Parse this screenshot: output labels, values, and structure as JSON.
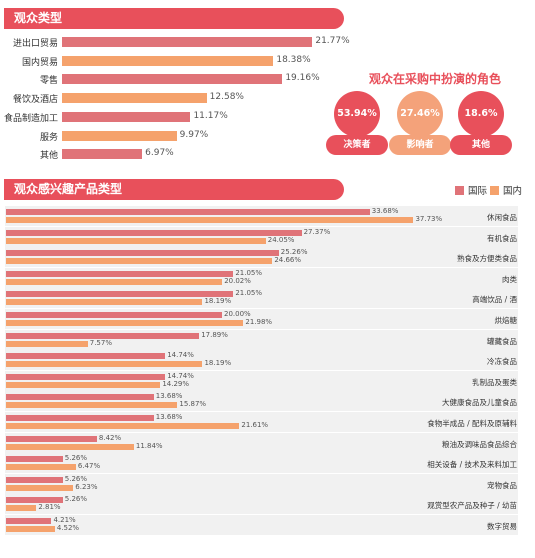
{
  "section1": {
    "title": "观众类型"
  },
  "section2": {
    "title": "观众感兴趣产品类型"
  },
  "role": {
    "title": "观众在采购中扮演的角色",
    "items": [
      {
        "value": "53.94%",
        "label": "决策者",
        "color": "#e8505b"
      },
      {
        "value": "27.46%",
        "label": "影响者",
        "color": "#f4a27a"
      },
      {
        "value": "18.6%",
        "label": "其他",
        "color": "#e8505b"
      }
    ]
  },
  "legend": {
    "series1": "国际",
    "series2": "国内"
  },
  "colors": {
    "accent": "#e8505b",
    "intl": "#e07378",
    "domestic": "#f5a26c"
  },
  "chart_data": [
    {
      "type": "bar",
      "orientation": "horizontal",
      "title": "观众类型",
      "categories": [
        "进出口贸易",
        "国内贸易",
        "零售",
        "餐饮及酒店",
        "食品制造加工",
        "服务",
        "其他"
      ],
      "values": [
        21.77,
        18.38,
        19.16,
        12.58,
        11.17,
        9.97,
        6.97
      ],
      "labels": [
        "21.77%",
        "18.38%",
        "19.16%",
        "12.58%",
        "11.17%",
        "9.97%",
        "6.97%"
      ],
      "bar_colors": [
        "#e07378",
        "#f5a26c",
        "#e07378",
        "#f5a26c",
        "#e07378",
        "#f5a26c",
        "#e07378"
      ]
    },
    {
      "type": "bar",
      "orientation": "horizontal",
      "title": "观众感兴趣产品类型",
      "categories": [
        "休闲食品",
        "有机食品",
        "熟食及方便类食品",
        "肉类",
        "高端饮品 / 酒",
        "烘焙糖",
        "罐藏食品",
        "冷冻食品",
        "乳制品及蛋类",
        "大健康食品及儿童食品",
        "食物半成品 / 配料及原辅料",
        "粮油及调味品食品综合",
        "相关设备 / 技术及来料加工",
        "宠物食品",
        "观赏型农产品及种子 / 幼苗",
        "数字贸易"
      ],
      "series": [
        {
          "name": "国际",
          "values": [
            33.68,
            27.37,
            25.26,
            21.05,
            21.05,
            20.0,
            17.89,
            14.74,
            14.74,
            13.68,
            13.68,
            8.42,
            5.26,
            5.26,
            5.26,
            4.21
          ],
          "labels": [
            "33.68%",
            "27.37%",
            "25.26%",
            "21.05%",
            "21.05%",
            "20.00%",
            "17.89%",
            "14.74%",
            "14.74%",
            "13.68%",
            "13.68%",
            "8.42%",
            "5.26%",
            "5.26%",
            "5.26%",
            "4.21%"
          ]
        },
        {
          "name": "国内",
          "values": [
            37.73,
            24.05,
            24.66,
            20.02,
            18.19,
            21.98,
            7.57,
            18.19,
            14.29,
            15.87,
            21.61,
            11.84,
            6.47,
            6.23,
            2.81,
            4.52
          ],
          "labels": [
            "37.73%",
            "24.05%",
            "24.66%",
            "20.02%",
            "18.19%",
            "21.98%",
            "7.57%",
            "18.19%",
            "14.29%",
            "15.87%",
            "21.61%",
            "11.84%",
            "6.47%",
            "6.23%",
            "2.81%",
            "4.52%"
          ]
        }
      ]
    }
  ]
}
